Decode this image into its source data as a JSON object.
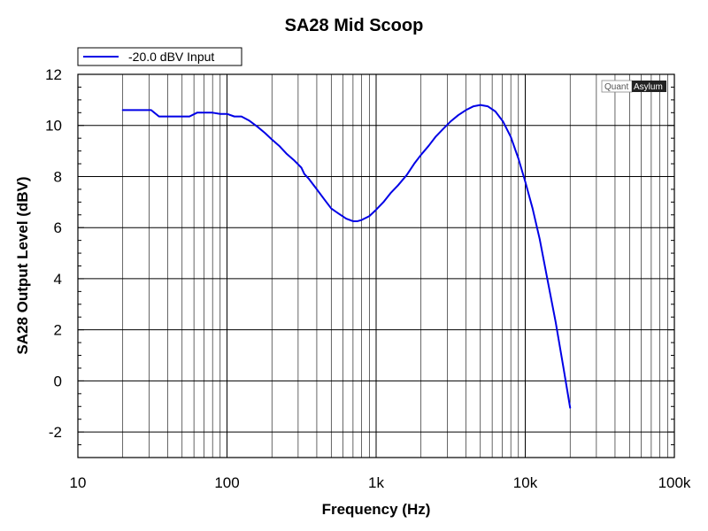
{
  "chart_data": {
    "type": "line",
    "title": "SA28 Mid Scoop",
    "xlabel": "Frequency (Hz)",
    "ylabel": "SA28 Output Level (dBV)",
    "x_scale": "log",
    "xlim": [
      10,
      100000
    ],
    "ylim": [
      -3,
      12
    ],
    "x_ticks": [
      10,
      100,
      1000,
      10000,
      100000
    ],
    "x_tick_labels": [
      "10",
      "100",
      "1k",
      "10k",
      "100k"
    ],
    "y_ticks": [
      -2,
      0,
      2,
      4,
      6,
      8,
      10,
      12
    ],
    "y_tick_labels": [
      "-2",
      "0",
      "2",
      "4",
      "6",
      "8",
      "10",
      "12"
    ],
    "grid": true,
    "legend_position": "top-left",
    "series": [
      {
        "name": "-20.0 dBV Input",
        "color": "#0000e6",
        "points": [
          [
            20,
            10.6
          ],
          [
            25,
            10.6
          ],
          [
            31,
            10.6
          ],
          [
            35,
            10.35
          ],
          [
            40,
            10.35
          ],
          [
            50,
            10.35
          ],
          [
            56,
            10.35
          ],
          [
            63,
            10.5
          ],
          [
            71,
            10.5
          ],
          [
            80,
            10.5
          ],
          [
            90,
            10.45
          ],
          [
            100,
            10.45
          ],
          [
            112,
            10.35
          ],
          [
            125,
            10.35
          ],
          [
            140,
            10.2
          ],
          [
            160,
            9.95
          ],
          [
            180,
            9.7
          ],
          [
            200,
            9.45
          ],
          [
            224,
            9.2
          ],
          [
            250,
            8.9
          ],
          [
            280,
            8.65
          ],
          [
            315,
            8.35
          ],
          [
            330,
            8.1
          ],
          [
            355,
            7.9
          ],
          [
            400,
            7.5
          ],
          [
            450,
            7.1
          ],
          [
            500,
            6.75
          ],
          [
            560,
            6.55
          ],
          [
            630,
            6.35
          ],
          [
            700,
            6.25
          ],
          [
            750,
            6.25
          ],
          [
            800,
            6.3
          ],
          [
            900,
            6.45
          ],
          [
            1000,
            6.7
          ],
          [
            1120,
            7.0
          ],
          [
            1250,
            7.35
          ],
          [
            1400,
            7.65
          ],
          [
            1600,
            8.05
          ],
          [
            1800,
            8.5
          ],
          [
            2000,
            8.85
          ],
          [
            2250,
            9.2
          ],
          [
            2500,
            9.55
          ],
          [
            2800,
            9.85
          ],
          [
            3150,
            10.15
          ],
          [
            3550,
            10.4
          ],
          [
            4000,
            10.6
          ],
          [
            4500,
            10.75
          ],
          [
            5000,
            10.8
          ],
          [
            5600,
            10.75
          ],
          [
            6300,
            10.55
          ],
          [
            7100,
            10.15
          ],
          [
            8000,
            9.55
          ],
          [
            9000,
            8.7
          ],
          [
            10000,
            7.8
          ],
          [
            11200,
            6.75
          ],
          [
            12500,
            5.55
          ],
          [
            14000,
            4.05
          ],
          [
            16000,
            2.3
          ],
          [
            18000,
            0.55
          ],
          [
            20000,
            -1.05
          ]
        ]
      }
    ]
  },
  "watermark": {
    "left": "Quant",
    "right": "Asylum"
  }
}
